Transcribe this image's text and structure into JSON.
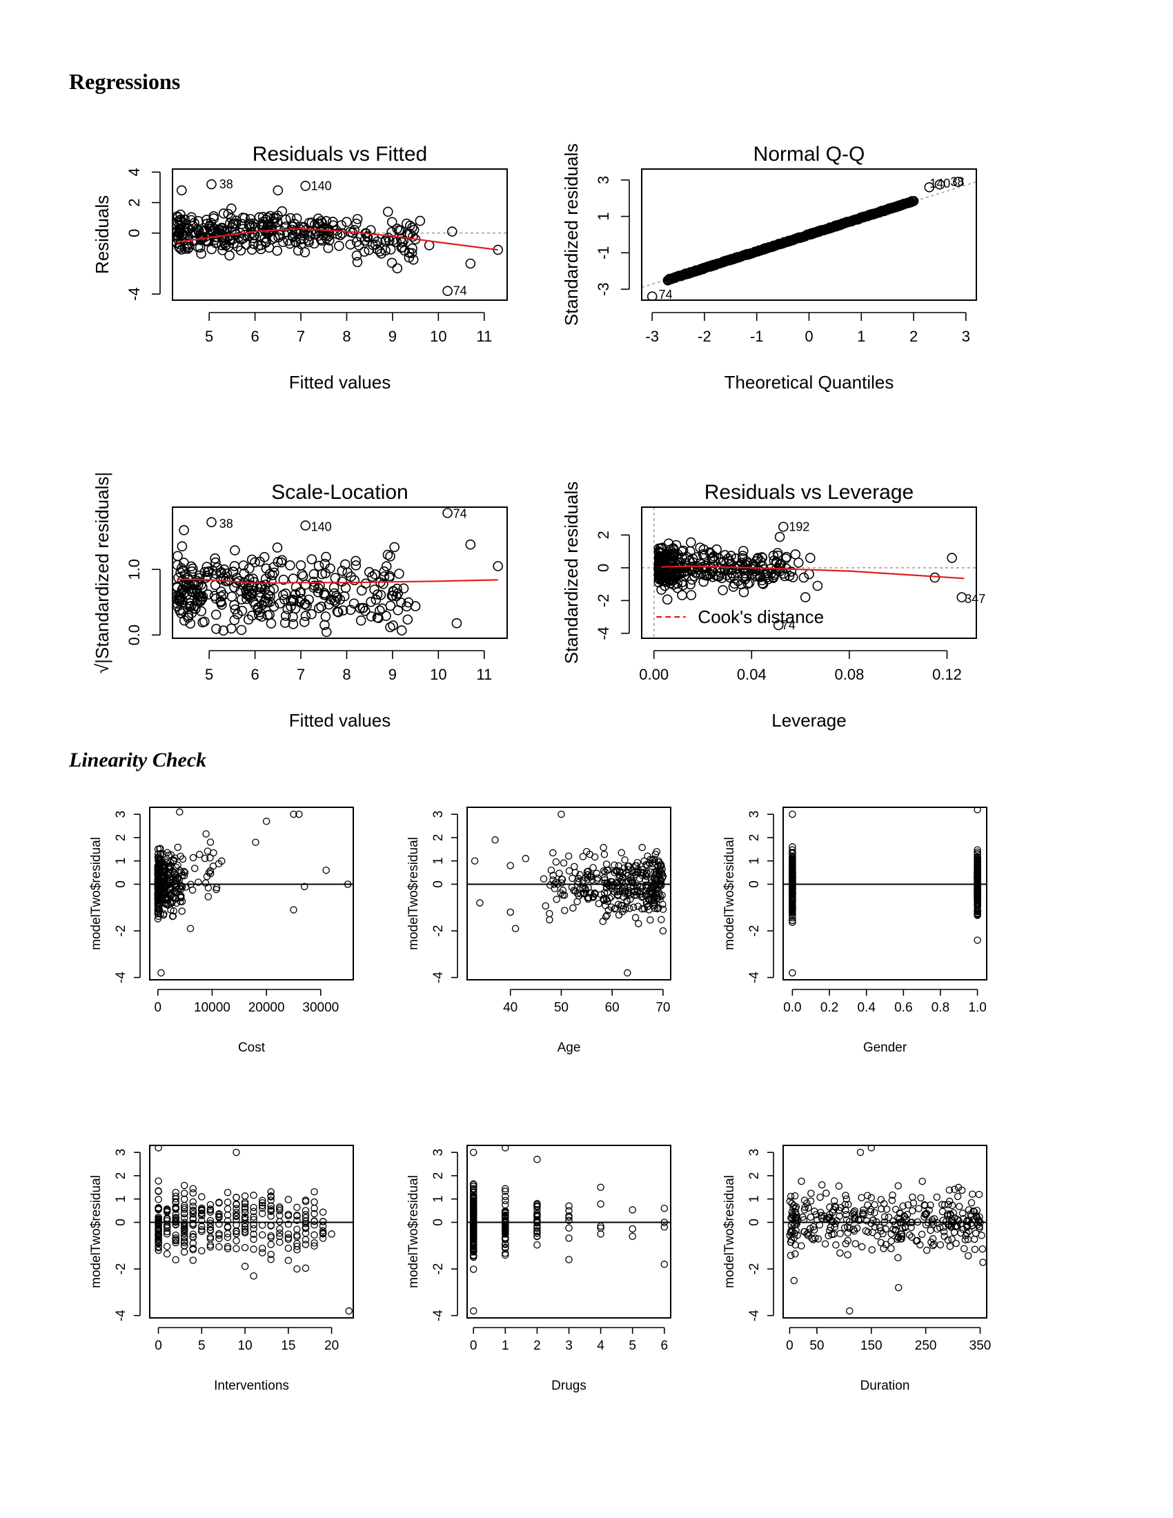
{
  "page": {
    "title": "Regressions",
    "subtitle": "Linearity Check"
  },
  "chart_data": [
    {
      "type": "scatter",
      "id": "resfit",
      "title": "Residuals vs Fitted",
      "xlabel": "Fitted values",
      "ylabel": "Residuals",
      "xlim": [
        4.2,
        11.5
      ],
      "ylim": [
        -4.4,
        4.2
      ],
      "xticks": [
        5,
        6,
        7,
        8,
        9,
        10,
        11
      ],
      "yticks": [
        -4,
        0,
        2,
        4
      ],
      "smooth": [
        [
          4.3,
          -0.6
        ],
        [
          5,
          -0.3
        ],
        [
          6,
          0.1
        ],
        [
          7,
          0.3
        ],
        [
          8,
          0.1
        ],
        [
          9,
          -0.2
        ],
        [
          10,
          -0.6
        ],
        [
          11.3,
          -1.1
        ]
      ],
      "refline": {
        "y": 0,
        "style": "dotted"
      },
      "labels": [
        {
          "text": "38",
          "x": 5.1,
          "y": 3.2
        },
        {
          "text": "140",
          "x": 7.1,
          "y": 3.1
        },
        {
          "text": "74",
          "x": 10.2,
          "y": -3.8
        }
      ],
      "points": [
        [
          5.05,
          3.2
        ],
        [
          7.1,
          3.1
        ],
        [
          10.2,
          -3.8
        ],
        [
          4.4,
          2.8
        ],
        [
          6.5,
          2.8
        ],
        [
          8.9,
          1.4
        ],
        [
          9.6,
          0.8
        ],
        [
          10.7,
          -2.0
        ],
        [
          11.3,
          -1.1
        ],
        [
          10.3,
          0.1
        ],
        [
          9.8,
          -0.8
        ]
      ]
    },
    {
      "type": "scatter",
      "id": "qq",
      "title": "Normal Q-Q",
      "xlabel": "Theoretical Quantiles",
      "ylabel": "Standardized residuals",
      "xlim": [
        -3.2,
        3.2
      ],
      "ylim": [
        -3.6,
        3.6
      ],
      "xticks": [
        -3,
        -2,
        -1,
        0,
        1,
        2,
        3
      ],
      "yticks": [
        -3,
        -1,
        1,
        3
      ],
      "refline": {
        "x1": -3.2,
        "y1": -2.9,
        "x2": 3.2,
        "y2": 2.9,
        "style": "dotted"
      },
      "labels": [
        {
          "text": "74",
          "x": -2.98,
          "y": -3.3
        },
        {
          "text": "140",
          "x": 2.2,
          "y": 2.8
        },
        {
          "text": "38",
          "x": 2.6,
          "y": 2.9
        }
      ],
      "points": [
        [
          -3.0,
          -3.4
        ],
        [
          2.85,
          2.9
        ],
        [
          2.5,
          2.75
        ],
        [
          2.3,
          2.6
        ]
      ]
    },
    {
      "type": "scatter",
      "id": "scaleloc",
      "title": "Scale-Location",
      "xlabel": "Fitted values",
      "ylabel": "√|Standardized residuals|",
      "xlim": [
        4.2,
        11.5
      ],
      "ylim": [
        -0.05,
        1.95
      ],
      "xticks": [
        5,
        6,
        7,
        8,
        9,
        10,
        11
      ],
      "yticks": [
        0.0,
        1.0
      ],
      "smooth": [
        [
          4.3,
          0.85
        ],
        [
          5,
          0.84
        ],
        [
          6,
          0.79
        ],
        [
          7,
          0.8
        ],
        [
          8,
          0.8
        ],
        [
          9,
          0.81
        ],
        [
          10,
          0.82
        ],
        [
          11.3,
          0.84
        ]
      ],
      "labels": [
        {
          "text": "38",
          "x": 5.1,
          "y": 1.7
        },
        {
          "text": "140",
          "x": 7.1,
          "y": 1.65
        },
        {
          "text": "74",
          "x": 10.2,
          "y": 1.85
        }
      ],
      "points": [
        [
          5.05,
          1.72
        ],
        [
          7.1,
          1.67
        ],
        [
          10.2,
          1.86
        ],
        [
          10.7,
          1.38
        ],
        [
          11.3,
          1.05
        ],
        [
          10.4,
          0.18
        ],
        [
          9.2,
          0.07
        ],
        [
          4.45,
          1.6
        ]
      ]
    },
    {
      "type": "scatter",
      "id": "resleverage",
      "title": "Residuals vs Leverage",
      "xlabel": "Leverage",
      "ylabel": "Standardized residuals",
      "xlim": [
        -0.005,
        0.132
      ],
      "ylim": [
        -4.3,
        3.7
      ],
      "xticks": [
        0.0,
        0.04,
        0.08,
        0.12
      ],
      "xtick_labels": [
        "0.00",
        "0.04",
        "0.08",
        "0.12"
      ],
      "yticks": [
        -4,
        -2,
        0,
        2
      ],
      "smooth": [
        [
          0.003,
          0.05
        ],
        [
          0.015,
          0.1
        ],
        [
          0.04,
          0.0
        ],
        [
          0.08,
          -0.2
        ],
        [
          0.127,
          -0.65
        ]
      ],
      "legend": "Cook's distance",
      "labels": [
        {
          "text": "192",
          "x": 0.053,
          "y": 2.5
        },
        {
          "text": "347",
          "x": 0.125,
          "y": -1.9
        },
        {
          "text": "74",
          "x": 0.05,
          "y": -3.5
        }
      ],
      "points": [
        [
          0.053,
          2.5
        ],
        [
          0.126,
          -1.8
        ],
        [
          0.051,
          -3.5
        ],
        [
          0.115,
          -0.6
        ],
        [
          0.122,
          0.6
        ],
        [
          0.062,
          -1.8
        ],
        [
          0.064,
          0.6
        ],
        [
          0.067,
          -1.1
        ]
      ]
    },
    {
      "type": "scatter",
      "id": "cost",
      "xlabel": "Cost",
      "ylabel": "modelTwo$residual",
      "xlim": [
        -1500,
        36000
      ],
      "ylim": [
        -4.1,
        3.3
      ],
      "xticks": [
        0,
        10000,
        20000,
        30000
      ],
      "yticks": [
        -4,
        -2,
        0,
        1,
        2,
        3
      ],
      "refline": {
        "y": 0,
        "style": "solid"
      },
      "points": [
        [
          4000,
          3.1
        ],
        [
          25000,
          3.0
        ],
        [
          26000,
          3.0
        ],
        [
          20000,
          2.7
        ],
        [
          18000,
          1.8
        ],
        [
          35000,
          0.0
        ],
        [
          31000,
          0.6
        ],
        [
          25000,
          -1.1
        ],
        [
          27000,
          -0.1
        ],
        [
          600,
          -3.8
        ],
        [
          6000,
          -1.9
        ]
      ]
    },
    {
      "type": "scatter",
      "id": "age",
      "xlabel": "Age",
      "ylabel": "modelTwo$residual",
      "xlim": [
        31.5,
        71.5
      ],
      "ylim": [
        -4.1,
        3.3
      ],
      "xticks": [
        40,
        50,
        60,
        70
      ],
      "yticks": [
        -4,
        -2,
        0,
        1,
        2,
        3
      ],
      "refline": {
        "y": 0,
        "style": "solid"
      },
      "points": [
        [
          33,
          1.0
        ],
        [
          34,
          -0.8
        ],
        [
          37,
          1.9
        ],
        [
          40,
          0.8
        ],
        [
          40,
          -1.2
        ],
        [
          41,
          -1.9
        ],
        [
          43,
          1.1
        ],
        [
          50,
          3.0
        ],
        [
          63,
          -3.8
        ],
        [
          70,
          -2.0
        ]
      ]
    },
    {
      "type": "scatter",
      "id": "gender",
      "xlabel": "Gender",
      "ylabel": "modelTwo$residual",
      "xlim": [
        -0.05,
        1.05
      ],
      "ylim": [
        -4.1,
        3.3
      ],
      "xticks": [
        0.0,
        0.2,
        0.4,
        0.6,
        0.8,
        1.0
      ],
      "xtick_labels": [
        "0.0",
        "0.2",
        "0.4",
        "0.6",
        "0.8",
        "1.0"
      ],
      "yticks": [
        -4,
        -2,
        0,
        1,
        2,
        3
      ],
      "refline": {
        "y": 0,
        "style": "solid"
      },
      "points": [
        [
          0,
          3.0
        ],
        [
          0,
          -3.8
        ],
        [
          1,
          3.2
        ],
        [
          1,
          -2.4
        ]
      ]
    },
    {
      "type": "scatter",
      "id": "interventions",
      "xlabel": "Interventions",
      "ylabel": "modelTwo$residual",
      "xlim": [
        -1,
        22.5
      ],
      "ylim": [
        -4.1,
        3.3
      ],
      "xticks": [
        0,
        5,
        10,
        15,
        20
      ],
      "yticks": [
        -4,
        -2,
        0,
        1,
        2,
        3
      ],
      "refline": {
        "y": 0,
        "style": "solid"
      },
      "points": [
        [
          0,
          3.2
        ],
        [
          9,
          3.0
        ],
        [
          22,
          -3.8
        ],
        [
          20,
          -0.5
        ],
        [
          18,
          0.6
        ],
        [
          11,
          -2.3
        ],
        [
          16,
          -2.0
        ]
      ]
    },
    {
      "type": "scatter",
      "id": "drugs",
      "xlabel": "Drugs",
      "ylabel": "modelTwo$residual",
      "xlim": [
        -0.2,
        6.2
      ],
      "ylim": [
        -4.1,
        3.3
      ],
      "xticks": [
        0,
        1,
        2,
        3,
        4,
        5,
        6
      ],
      "yticks": [
        -4,
        -2,
        0,
        1,
        2,
        3
      ],
      "refline": {
        "y": 0,
        "style": "solid"
      },
      "points": [
        [
          0,
          3.0
        ],
        [
          0,
          -3.8
        ],
        [
          1,
          3.2
        ],
        [
          2,
          2.7
        ],
        [
          3,
          0.7
        ],
        [
          3,
          -1.6
        ],
        [
          4,
          1.5
        ],
        [
          4,
          -0.5
        ],
        [
          5,
          -0.6
        ],
        [
          6,
          0.6
        ],
        [
          6,
          -1.8
        ]
      ]
    },
    {
      "type": "scatter",
      "id": "duration",
      "xlabel": "Duration",
      "ylabel": "modelTwo$residual",
      "xlim": [
        -12,
        362
      ],
      "ylim": [
        -4.1,
        3.3
      ],
      "xticks": [
        0,
        50,
        150,
        250,
        350
      ],
      "yticks": [
        -4,
        -2,
        0,
        1,
        2,
        3
      ],
      "refline": {
        "y": 0,
        "style": "solid"
      },
      "points": [
        [
          150,
          3.2
        ],
        [
          130,
          3.0
        ],
        [
          110,
          -3.8
        ],
        [
          200,
          -2.8
        ],
        [
          350,
          0.0
        ],
        [
          8,
          -2.5
        ]
      ]
    }
  ]
}
